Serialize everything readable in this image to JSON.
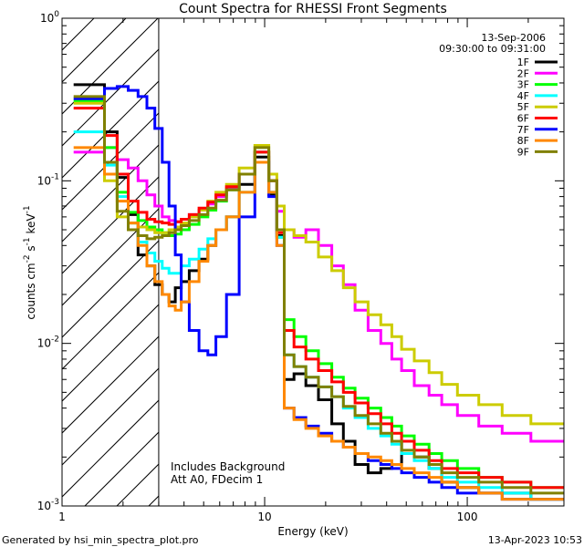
{
  "chart_data": {
    "type": "line",
    "scale": "log-log",
    "title": "Count Spectra for RHESSI Front Segments",
    "xlabel": "Energy (keV)",
    "ylabel_parts": {
      "main": "counts cm",
      "exp1": "-2",
      "mid1": " s",
      "exp2": "-1",
      "mid2": " keV",
      "exp3": "-1"
    },
    "xlim": [
      1.0,
      300.0
    ],
    "ylim": [
      0.001,
      1.0
    ],
    "x_ticks": [
      {
        "value": 1,
        "label": "1"
      },
      {
        "value": 10,
        "label": "10"
      },
      {
        "value": 100,
        "label": "100"
      }
    ],
    "y_ticks": [
      {
        "value": 1.0,
        "base": "10",
        "exp": "0"
      },
      {
        "value": 0.1,
        "base": "10",
        "exp": "-1"
      },
      {
        "value": 0.01,
        "base": "10",
        "exp": "-2"
      },
      {
        "value": 0.001,
        "base": "10",
        "exp": "-3"
      }
    ],
    "date_label": "13-Sep-2006",
    "time_label": "09:30:00 to 09:31:00",
    "annotation_lines": [
      "Includes Background",
      "Att A0, FDecim 1"
    ],
    "shaded_region": {
      "x_start": 1.0,
      "x_end": 3.0,
      "style": "diagonal-hatch"
    },
    "series": [
      {
        "name": "1F",
        "color": "#000000",
        "values": [
          0.39,
          0.39,
          0.2,
          0.105,
          0.062,
          0.035,
          0.03,
          0.023,
          0.02,
          0.018,
          0.022,
          0.024,
          0.028,
          0.033,
          0.04,
          0.05,
          0.06,
          0.095,
          0.14,
          0.082,
          0.046,
          0.006,
          0.0065,
          0.0055,
          0.0045,
          0.0032,
          0.0025,
          0.0018,
          0.0016,
          0.0017,
          0.0018,
          0.0025,
          0.002,
          0.0017,
          0.0014,
          0.0013,
          0.0012,
          0.0012,
          0.0011
        ]
      },
      {
        "name": "2F",
        "color": "#ff00ff",
        "values": [
          0.15,
          0.15,
          0.16,
          0.135,
          0.12,
          0.1,
          0.082,
          0.07,
          0.06,
          0.057,
          0.056,
          0.058,
          0.062,
          0.066,
          0.072,
          0.08,
          0.09,
          0.11,
          0.15,
          0.1,
          0.065,
          0.05,
          0.045,
          0.05,
          0.04,
          0.03,
          0.023,
          0.016,
          0.012,
          0.01,
          0.008,
          0.0068,
          0.0055,
          0.0048,
          0.0042,
          0.0036,
          0.0031,
          0.0028,
          0.0025
        ]
      },
      {
        "name": "3F",
        "color": "#00ff00",
        "values": [
          0.31,
          0.31,
          0.16,
          0.085,
          0.064,
          0.057,
          0.052,
          0.05,
          0.048,
          0.046,
          0.047,
          0.05,
          0.054,
          0.06,
          0.066,
          0.075,
          0.088,
          0.11,
          0.15,
          0.1,
          0.045,
          0.014,
          0.011,
          0.009,
          0.0075,
          0.0062,
          0.0053,
          0.0046,
          0.004,
          0.0035,
          0.0031,
          0.0027,
          0.0024,
          0.0021,
          0.0019,
          0.0017,
          0.0015,
          0.0014,
          0.0013
        ]
      },
      {
        "name": "4F",
        "color": "#00ffff",
        "values": [
          0.2,
          0.2,
          0.125,
          0.08,
          0.055,
          0.042,
          0.036,
          0.032,
          0.029,
          0.027,
          0.027,
          0.03,
          0.033,
          0.038,
          0.044,
          0.05,
          0.06,
          0.085,
          0.13,
          0.085,
          0.045,
          0.0085,
          0.0072,
          0.0062,
          0.0054,
          0.0047,
          0.004,
          0.0035,
          0.003,
          0.0027,
          0.0024,
          0.0021,
          0.0019,
          0.0017,
          0.0015,
          0.0014,
          0.0013,
          0.0012,
          0.0011
        ]
      },
      {
        "name": "5F",
        "color": "#cccc00",
        "values": [
          0.3,
          0.3,
          0.1,
          0.06,
          0.055,
          0.052,
          0.05,
          0.048,
          0.048,
          0.05,
          0.052,
          0.055,
          0.06,
          0.066,
          0.075,
          0.085,
          0.095,
          0.12,
          0.165,
          0.11,
          0.07,
          0.05,
          0.046,
          0.042,
          0.034,
          0.028,
          0.022,
          0.018,
          0.015,
          0.013,
          0.011,
          0.0092,
          0.0078,
          0.0066,
          0.0056,
          0.0048,
          0.0042,
          0.0036,
          0.0032
        ]
      },
      {
        "name": "6F",
        "color": "#ff0000",
        "values": [
          0.28,
          0.28,
          0.19,
          0.11,
          0.075,
          0.064,
          0.058,
          0.056,
          0.055,
          0.054,
          0.056,
          0.058,
          0.062,
          0.068,
          0.074,
          0.082,
          0.092,
          0.11,
          0.15,
          0.1,
          0.048,
          0.012,
          0.0095,
          0.008,
          0.0068,
          0.0058,
          0.005,
          0.0043,
          0.0037,
          0.0032,
          0.0028,
          0.0025,
          0.0022,
          0.0019,
          0.0017,
          0.0016,
          0.0015,
          0.0014,
          0.0013
        ]
      },
      {
        "name": "7F",
        "color": "#0000ff",
        "values": [
          0.32,
          0.32,
          0.37,
          0.38,
          0.36,
          0.33,
          0.28,
          0.21,
          0.13,
          0.07,
          0.035,
          0.018,
          0.012,
          0.009,
          0.0085,
          0.011,
          0.02,
          0.06,
          0.13,
          0.08,
          0.04,
          0.004,
          0.0035,
          0.0031,
          0.0028,
          0.0025,
          0.0023,
          0.0021,
          0.0019,
          0.0018,
          0.0017,
          0.0016,
          0.0015,
          0.0014,
          0.0013,
          0.0012,
          0.0012,
          0.0011,
          0.0011
        ]
      },
      {
        "name": "8F",
        "color": "#ff8800",
        "values": [
          0.16,
          0.16,
          0.11,
          0.075,
          0.055,
          0.04,
          0.03,
          0.024,
          0.02,
          0.017,
          0.016,
          0.018,
          0.024,
          0.032,
          0.04,
          0.05,
          0.06,
          0.085,
          0.13,
          0.085,
          0.04,
          0.004,
          0.0034,
          0.003,
          0.0027,
          0.0025,
          0.0023,
          0.0021,
          0.002,
          0.0019,
          0.0018,
          0.0017,
          0.0016,
          0.0015,
          0.0014,
          0.0013,
          0.0012,
          0.0011,
          0.0011
        ]
      },
      {
        "name": "9F",
        "color": "#808000",
        "values": [
          0.33,
          0.33,
          0.13,
          0.065,
          0.05,
          0.046,
          0.044,
          0.045,
          0.046,
          0.048,
          0.05,
          0.053,
          0.057,
          0.062,
          0.068,
          0.076,
          0.088,
          0.11,
          0.16,
          0.1,
          0.05,
          0.0085,
          0.0072,
          0.0062,
          0.0054,
          0.0047,
          0.0041,
          0.0036,
          0.0032,
          0.0028,
          0.0025,
          0.0022,
          0.002,
          0.0018,
          0.0016,
          0.0015,
          0.0014,
          0.0013,
          0.0012
        ]
      }
    ],
    "x": [
      1.25,
      1.5,
      1.75,
      2.0,
      2.25,
      2.5,
      2.75,
      3.0,
      3.25,
      3.5,
      3.75,
      4.0,
      4.5,
      5.0,
      5.5,
      6.0,
      7.0,
      8.0,
      10.0,
      11.0,
      12.0,
      13.0,
      15.0,
      17.0,
      20.0,
      23.0,
      26.0,
      30.0,
      35.0,
      40.0,
      45.0,
      50.0,
      60.0,
      70.0,
      80.0,
      100.0,
      130.0,
      170.0,
      250.0
    ]
  },
  "footer": {
    "left": "Generated by hsi_min_spectra_plot.pro",
    "right": "13-Apr-2023 10:53"
  }
}
